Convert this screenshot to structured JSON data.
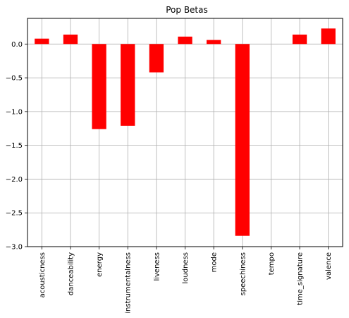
{
  "chart_data": {
    "type": "bar",
    "title": "Pop Betas",
    "xlabel": "",
    "ylabel": "",
    "ylim": [
      -3.0,
      0.38
    ],
    "yticks": [
      "0.0",
      "−0.5",
      "−1.0",
      "−1.5",
      "−2.0",
      "−2.5",
      "−3.0"
    ],
    "ytick_values": [
      0.0,
      -0.5,
      -1.0,
      -1.5,
      -2.0,
      -2.5,
      -3.0
    ],
    "categories": [
      "acousticness",
      "danceability",
      "energy",
      "instrumentalness",
      "liveness",
      "loudness",
      "mode",
      "speechiness",
      "tempo",
      "time_signature",
      "valence"
    ],
    "values": [
      0.08,
      0.14,
      -1.26,
      -1.21,
      -0.42,
      0.11,
      0.06,
      -2.84,
      0.0,
      0.14,
      0.23
    ],
    "grid": true,
    "bar_color": "#ff0000"
  }
}
